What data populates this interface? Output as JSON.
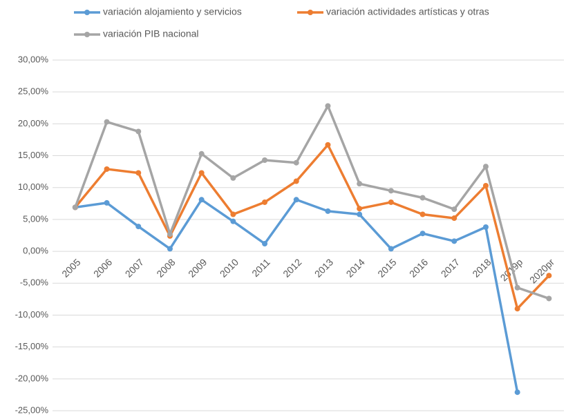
{
  "chart_data": {
    "type": "line",
    "legend": "top",
    "grid": true,
    "categories": [
      "2005",
      "2006",
      "2007",
      "2008",
      "2009",
      "2010",
      "2011",
      "2012",
      "2013",
      "2014",
      "2015",
      "2016",
      "2017",
      "2018",
      "2019p",
      "2020pr"
    ],
    "series": [
      {
        "name": "variación alojamiento y servicios",
        "color": "#5b9bd5",
        "values": [
          6.9,
          7.6,
          3.9,
          0.4,
          8.1,
          4.7,
          1.2,
          8.1,
          6.3,
          5.8,
          0.4,
          2.8,
          1.6,
          3.8,
          -22.1,
          null
        ]
      },
      {
        "name": "variación actividades artísticas y otras",
        "color": "#ed7d31",
        "values": [
          6.9,
          12.9,
          12.3,
          2.4,
          12.3,
          5.8,
          7.7,
          11.0,
          16.7,
          6.7,
          7.7,
          5.8,
          5.2,
          10.3,
          -9.0,
          -3.8
        ]
      },
      {
        "name": "variación PIB nacional",
        "color": "#a5a5a5",
        "values": [
          6.9,
          20.3,
          18.8,
          2.7,
          15.3,
          11.5,
          14.3,
          13.9,
          22.8,
          10.6,
          9.5,
          8.4,
          6.6,
          13.3,
          -5.7,
          -7.4
        ]
      }
    ],
    "ylim": [
      -25,
      30
    ],
    "yticks": [
      {
        "value": -25,
        "label": "-25,00%"
      },
      {
        "value": -20,
        "label": "-20,00%"
      },
      {
        "value": -15,
        "label": "-15,00%"
      },
      {
        "value": -10,
        "label": "-10,00%"
      },
      {
        "value": -5,
        "label": "-5,00%"
      },
      {
        "value": 0,
        "label": "0,00%"
      },
      {
        "value": 5,
        "label": "5,00%"
      },
      {
        "value": 10,
        "label": "10,00%"
      },
      {
        "value": 15,
        "label": "15,00%"
      },
      {
        "value": 20,
        "label": "20,00%"
      },
      {
        "value": 25,
        "label": "25,00%"
      },
      {
        "value": 30,
        "label": "30,00%"
      }
    ]
  }
}
